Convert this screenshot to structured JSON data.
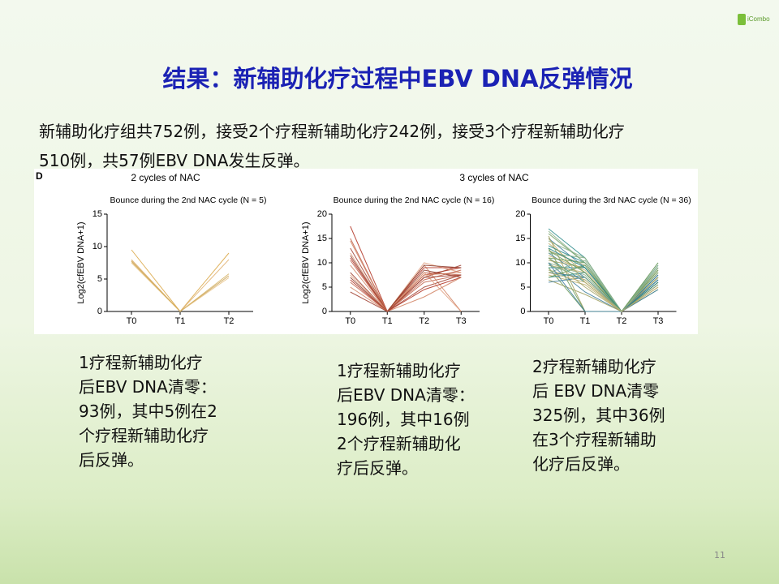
{
  "header": {
    "logo": "iCombo",
    "title": "结果：新辅助化疗过程中EBV DNA反弹情况"
  },
  "intro": [
    "新辅助化疗组共752例，接受2个疗程新辅助化疗242例，接受3个疗程新辅助化疗",
    "510例，共57例EBV DNA发生反弹。"
  ],
  "figure": {
    "panel": "D",
    "groups": [
      "2 cycles of NAC",
      "3 cycles of NAC"
    ]
  },
  "chart_data": [
    {
      "type": "line",
      "title": "Bounce during the 2nd NAC cycle (N = 5)",
      "ylabel": "Log2(cfEBV DNA+1)",
      "categories": [
        "T0",
        "T1",
        "T2"
      ],
      "ylim": [
        0,
        15
      ],
      "yticks": [
        0,
        5,
        10,
        15
      ],
      "series": [
        {
          "color": "#d9a441",
          "values": [
            9.5,
            0,
            9
          ]
        },
        {
          "color": "#e0b070",
          "values": [
            8,
            0,
            8
          ]
        },
        {
          "color": "#c8a050",
          "values": [
            7.8,
            0,
            5.5
          ]
        },
        {
          "color": "#e6c080",
          "values": [
            7.5,
            0,
            5.2
          ]
        },
        {
          "color": "#d4b060",
          "values": [
            7.7,
            0,
            5.8
          ]
        }
      ]
    },
    {
      "type": "line",
      "title": "Bounce during the 2nd NAC cycle (N = 16)",
      "ylabel": "Log2(cfEBV DNA+1)",
      "categories": [
        "T0",
        "T1",
        "T2",
        "T3"
      ],
      "ylim": [
        0,
        20
      ],
      "yticks": [
        0,
        5,
        10,
        15,
        20
      ],
      "series": [
        {
          "color": "#b03020",
          "values": [
            17.5,
            0,
            7.5,
            9
          ]
        },
        {
          "color": "#c0604a",
          "values": [
            15,
            0,
            8,
            7.5
          ]
        },
        {
          "color": "#d08060",
          "values": [
            14.5,
            0,
            9.5,
            0
          ]
        },
        {
          "color": "#a04030",
          "values": [
            13,
            0,
            7,
            9.5
          ]
        },
        {
          "color": "#e0a080",
          "values": [
            12,
            0,
            10,
            8
          ]
        },
        {
          "color": "#8b3a2a",
          "values": [
            11.5,
            0,
            8.5,
            7
          ]
        },
        {
          "color": "#b03020",
          "values": [
            11,
            0,
            9,
            9
          ]
        },
        {
          "color": "#c0604a",
          "values": [
            10.5,
            0,
            6,
            7.5
          ]
        },
        {
          "color": "#d08060",
          "values": [
            9.5,
            0,
            7.5,
            8
          ]
        },
        {
          "color": "#a04030",
          "values": [
            8,
            0,
            5,
            7.5
          ]
        },
        {
          "color": "#e0a080",
          "values": [
            7.5,
            0,
            8,
            0
          ]
        },
        {
          "color": "#8b3a2a",
          "values": [
            7,
            0,
            9.5,
            9
          ]
        },
        {
          "color": "#b03020",
          "values": [
            6.5,
            0,
            4.5,
            7
          ]
        },
        {
          "color": "#c0604a",
          "values": [
            6,
            0,
            6.5,
            8.5
          ]
        },
        {
          "color": "#d08060",
          "values": [
            5,
            0,
            3,
            7
          ]
        },
        {
          "color": "#a04030",
          "values": [
            4,
            0,
            7,
            7.5
          ]
        }
      ]
    },
    {
      "type": "line",
      "title": "Bounce during the 3rd NAC cycle (N = 36)",
      "categories": [
        "T0",
        "T1",
        "T2",
        "T3"
      ],
      "ylim": [
        0,
        20
      ],
      "yticks": [
        0,
        5,
        10,
        15,
        20
      ],
      "series": [
        {
          "color": "#2a8a8a",
          "values": [
            17,
            11,
            0,
            9.5
          ]
        },
        {
          "color": "#6a9a5a",
          "values": [
            16,
            10,
            0,
            8
          ]
        },
        {
          "color": "#a0a060",
          "values": [
            15.5,
            0,
            0,
            7
          ]
        },
        {
          "color": "#3a7a9a",
          "values": [
            15,
            9,
            0,
            6
          ]
        },
        {
          "color": "#8ab08a",
          "values": [
            14.5,
            11,
            0,
            10
          ]
        },
        {
          "color": "#c0b070",
          "values": [
            14,
            8,
            0,
            5
          ]
        },
        {
          "color": "#2a8a8a",
          "values": [
            13.5,
            10,
            0,
            9
          ]
        },
        {
          "color": "#6a9a5a",
          "values": [
            13,
            0,
            0,
            4.5
          ]
        },
        {
          "color": "#a0a060",
          "values": [
            12.5,
            9.5,
            0,
            8.5
          ]
        },
        {
          "color": "#3a7a9a",
          "values": [
            12,
            7,
            0,
            6.5
          ]
        },
        {
          "color": "#8ab08a",
          "values": [
            12,
            11,
            0,
            7
          ]
        },
        {
          "color": "#c0b070",
          "values": [
            11.5,
            8.5,
            0,
            9
          ]
        },
        {
          "color": "#2a8a8a",
          "values": [
            11,
            6,
            0,
            5.5
          ]
        },
        {
          "color": "#6a9a5a",
          "values": [
            11,
            10,
            0,
            8
          ]
        },
        {
          "color": "#a0a060",
          "values": [
            10.5,
            9,
            0,
            6
          ]
        },
        {
          "color": "#3a7a9a",
          "values": [
            10,
            4,
            0,
            7.5
          ]
        },
        {
          "color": "#8ab08a",
          "values": [
            10,
            7.5,
            0,
            9.5
          ]
        },
        {
          "color": "#c0b070",
          "values": [
            9.5,
            8,
            0,
            5
          ]
        },
        {
          "color": "#2a8a8a",
          "values": [
            9,
            9,
            0,
            7
          ]
        },
        {
          "color": "#6a9a5a",
          "values": [
            9,
            0,
            0,
            8.5
          ]
        },
        {
          "color": "#a0a060",
          "values": [
            8.5,
            6.5,
            0,
            6
          ]
        },
        {
          "color": "#3a7a9a",
          "values": [
            8,
            7,
            0,
            4.5
          ]
        },
        {
          "color": "#8ab08a",
          "values": [
            8,
            10.5,
            0,
            9
          ]
        },
        {
          "color": "#c0b070",
          "values": [
            7.5,
            5.5,
            0,
            7
          ]
        },
        {
          "color": "#2a8a8a",
          "values": [
            7,
            8,
            0,
            6.5
          ]
        },
        {
          "color": "#6a9a5a",
          "values": [
            7,
            9.5,
            0,
            8
          ]
        },
        {
          "color": "#a0a060",
          "values": [
            6.5,
            3.5,
            0,
            5.5
          ]
        },
        {
          "color": "#3a7a9a",
          "values": [
            6,
            7,
            0,
            7.5
          ]
        },
        {
          "color": "#8ab08a",
          "values": [
            16.5,
            10,
            0,
            9
          ]
        },
        {
          "color": "#c0b070",
          "values": [
            15,
            6,
            0,
            8
          ]
        },
        {
          "color": "#2a8a8a",
          "values": [
            13,
            9,
            0,
            6
          ]
        },
        {
          "color": "#6a9a5a",
          "values": [
            12.5,
            8,
            0,
            10
          ]
        },
        {
          "color": "#a0a060",
          "values": [
            11,
            5,
            0,
            7
          ]
        },
        {
          "color": "#3a7a9a",
          "values": [
            10,
            0,
            0,
            6.5
          ]
        },
        {
          "color": "#8ab08a",
          "values": [
            9.5,
            7,
            0,
            8
          ]
        },
        {
          "color": "#c0b070",
          "values": [
            8,
            6,
            0,
            5
          ]
        }
      ]
    }
  ],
  "notes": [
    [
      "1疗程新辅助化疗",
      "后EBV DNA清零：",
      "93例，其中5例在2",
      "个疗程新辅助化疗",
      "后反弹。"
    ],
    [
      "1疗程新辅助化疗",
      "后EBV DNA清零：",
      "196例，其中16例",
      "2个疗程新辅助化",
      "疗后反弹。"
    ],
    [
      "2疗程新辅助化疗",
      "后 EBV DNA清零",
      "325例，其中36例",
      "在3个疗程新辅助",
      "化疗后反弹。"
    ]
  ],
  "page_number": "11"
}
